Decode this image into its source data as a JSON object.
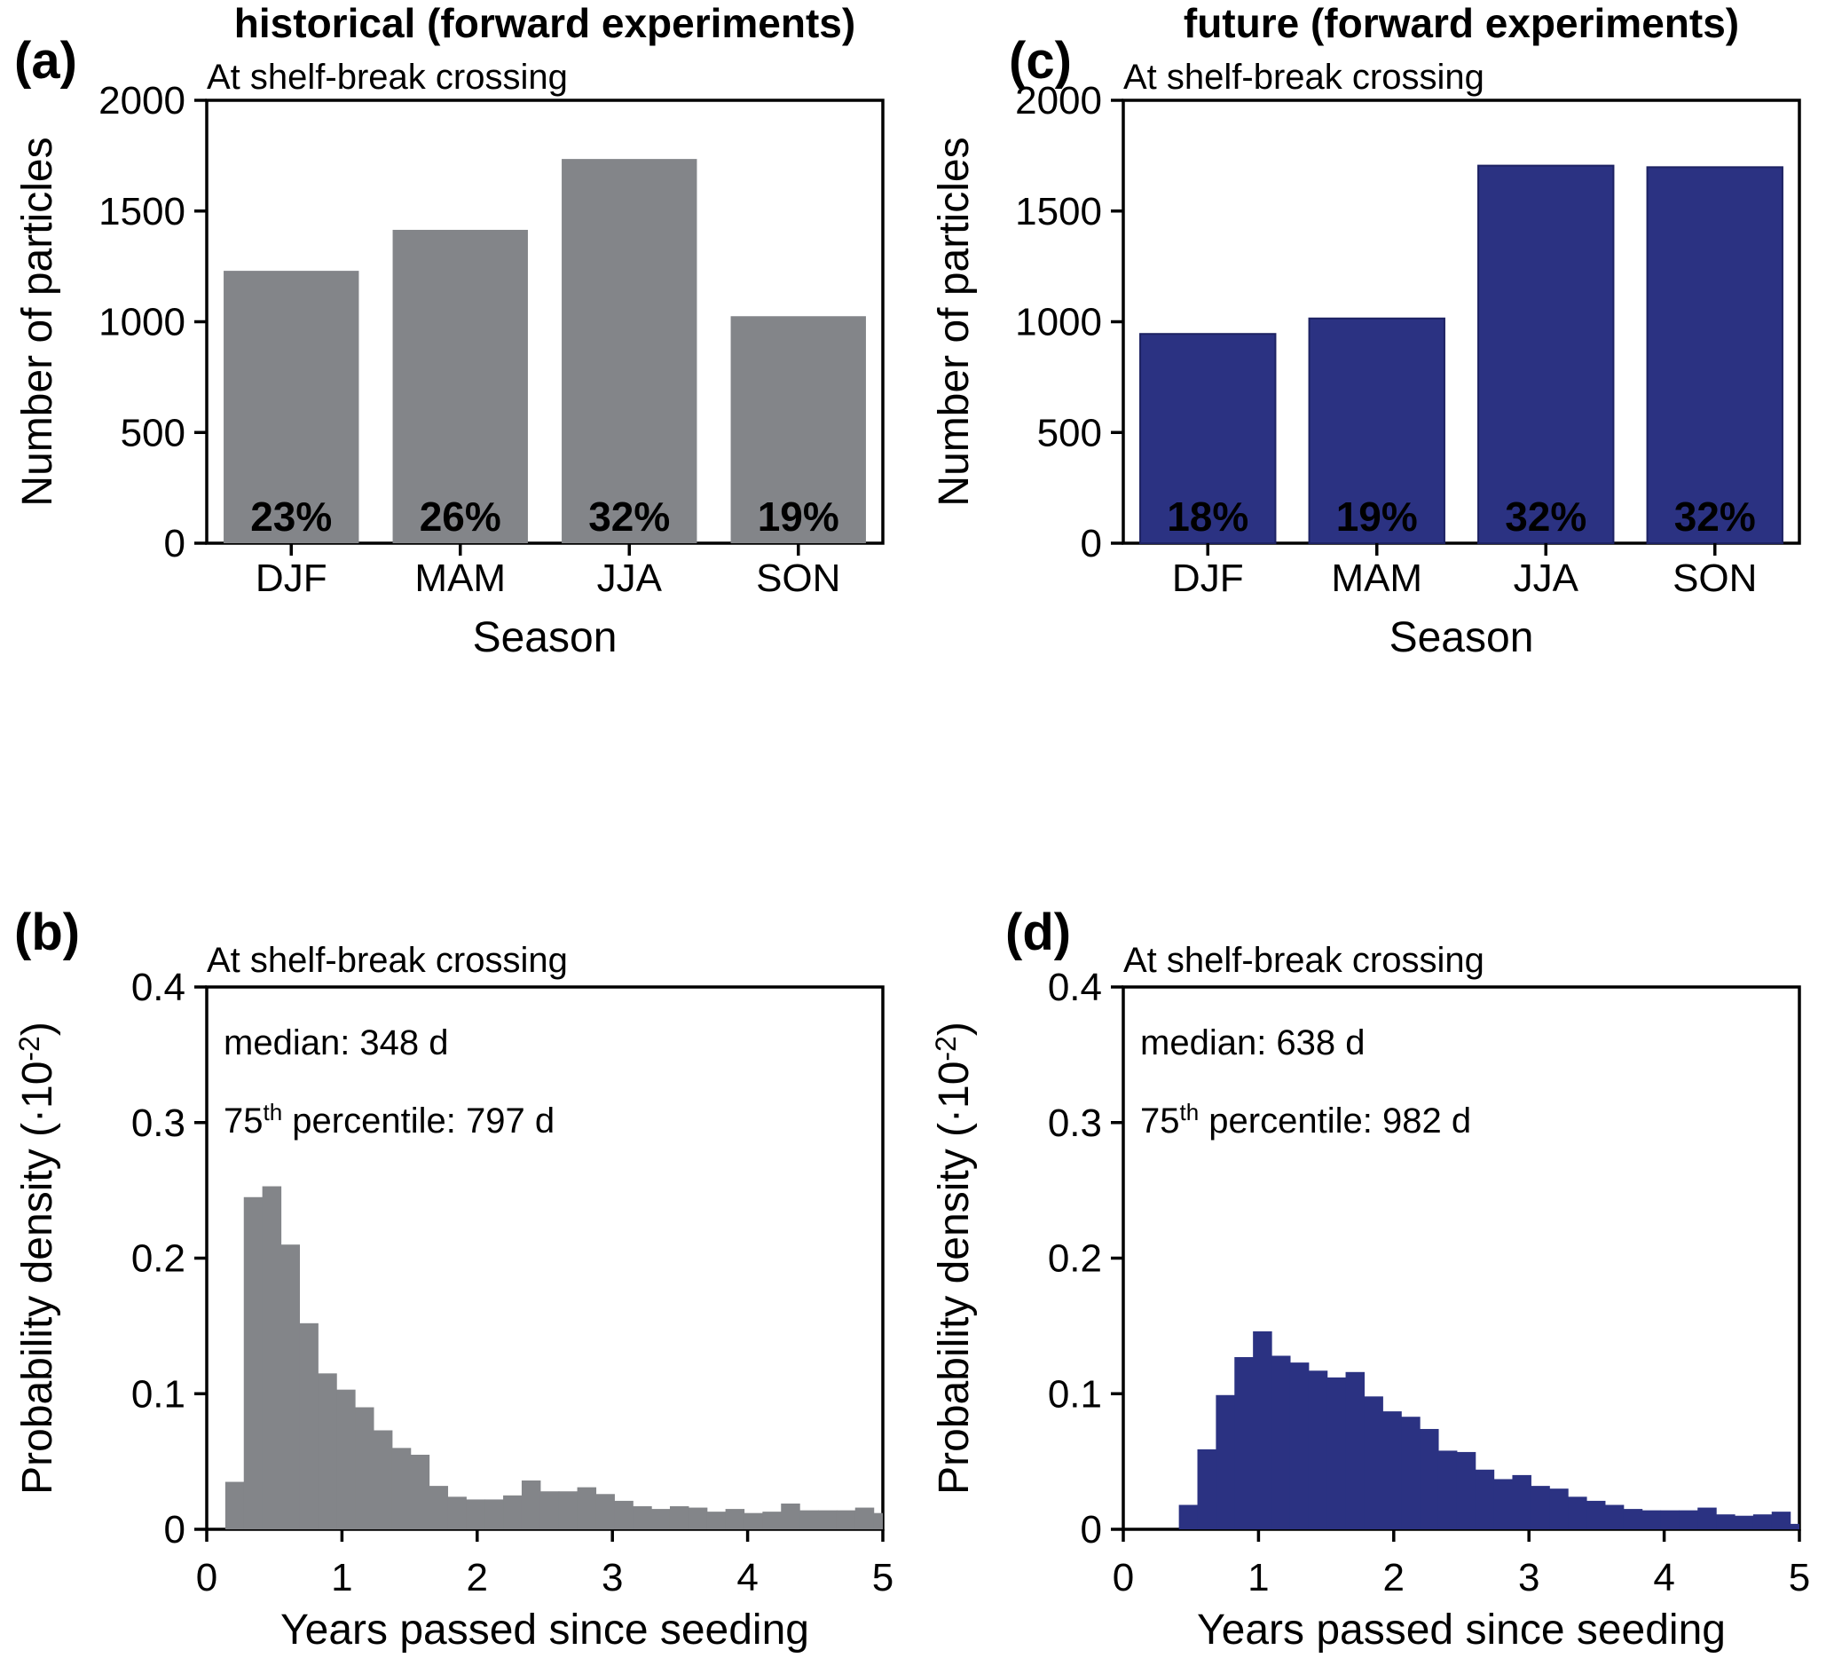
{
  "figure": {
    "column_titles": [
      "historical (forward experiments)",
      "future (forward experiments)"
    ]
  },
  "colors": {
    "historical_fill": "#838589",
    "future_fill": "#2b3282",
    "future_edge": "#1d2263",
    "axis": "#000000",
    "bar_label_text": "#ffffff"
  },
  "chart_data": [
    {
      "id": "a",
      "type": "bar",
      "panel_tag": "(a)",
      "column_title": "historical (forward experiments)",
      "subtitle": "At shelf-break crossing",
      "categories": [
        "DJF",
        "MAM",
        "JJA",
        "SON"
      ],
      "values": [
        1230,
        1415,
        1735,
        1025
      ],
      "bar_labels": [
        "23%",
        "26%",
        "32%",
        "19%"
      ],
      "xlabel": "Season",
      "ylabel_parts": [
        {
          "t": "Number of particles"
        }
      ],
      "ylim": [
        0,
        2000
      ],
      "yticks": [
        {
          "v": 0,
          "label": "0"
        },
        {
          "v": 500,
          "label": "500"
        },
        {
          "v": 1000,
          "label": "1000"
        },
        {
          "v": 1500,
          "label": "1500"
        },
        {
          "v": 2000,
          "label": "2000"
        }
      ],
      "bar_color": "#838589",
      "bar_stroke": "none",
      "legend": "none",
      "grid": false
    },
    {
      "id": "c",
      "type": "bar",
      "panel_tag": "(c)",
      "column_title": "future (forward experiments)",
      "subtitle": "At shelf-break crossing",
      "categories": [
        "DJF",
        "MAM",
        "JJA",
        "SON"
      ],
      "values": [
        945,
        1015,
        1705,
        1698
      ],
      "bar_labels": [
        "18%",
        "19%",
        "32%",
        "32%"
      ],
      "xlabel": "Season",
      "ylabel_parts": [
        {
          "t": "Number of particles"
        }
      ],
      "ylim": [
        0,
        2000
      ],
      "yticks": [
        {
          "v": 0,
          "label": "0"
        },
        {
          "v": 500,
          "label": "500"
        },
        {
          "v": 1000,
          "label": "1000"
        },
        {
          "v": 1500,
          "label": "1500"
        },
        {
          "v": 2000,
          "label": "2000"
        }
      ],
      "bar_color": "#2b3282",
      "bar_stroke": "#1d2263",
      "legend": "none",
      "grid": false
    },
    {
      "id": "b",
      "type": "histogram",
      "panel_tag": "(b)",
      "subtitle": "At shelf-break crossing",
      "annotations": [
        [
          {
            "t": "median: 348 d"
          }
        ],
        [
          {
            "t": "75"
          },
          {
            "t": "th",
            "sup": true
          },
          {
            "t": " percentile: 797 d"
          }
        ]
      ],
      "xlabel": "Years passed since seeding",
      "ylabel_parts": [
        {
          "t": "Probability density (·10"
        },
        {
          "t": "-2",
          "sup": true
        },
        {
          "t": ")"
        }
      ],
      "xlim": [
        0,
        5
      ],
      "ylim": [
        0,
        0.4
      ],
      "xticks": [
        {
          "v": 0,
          "label": "0"
        },
        {
          "v": 1,
          "label": "1"
        },
        {
          "v": 2,
          "label": "2"
        },
        {
          "v": 3,
          "label": "3"
        },
        {
          "v": 4,
          "label": "4"
        },
        {
          "v": 5,
          "label": "5"
        }
      ],
      "yticks": [
        {
          "v": 0,
          "label": "0"
        },
        {
          "v": 0.1,
          "label": "0.1"
        },
        {
          "v": 0.2,
          "label": "0.2"
        },
        {
          "v": 0.3,
          "label": "0.3"
        },
        {
          "v": 0.4,
          "label": "0.4"
        }
      ],
      "bin_start": 0.137,
      "bin_width": 0.137,
      "heights": [
        0.035,
        0.245,
        0.253,
        0.21,
        0.152,
        0.115,
        0.103,
        0.09,
        0.073,
        0.06,
        0.055,
        0.032,
        0.024,
        0.022,
        0.022,
        0.025,
        0.036,
        0.028,
        0.028,
        0.031,
        0.026,
        0.021,
        0.017,
        0.015,
        0.017,
        0.016,
        0.013,
        0.015,
        0.012,
        0.013,
        0.019,
        0.014,
        0.014,
        0.014,
        0.016,
        0.012
      ],
      "bar_color": "#838589",
      "bar_stroke": "none",
      "grid": false
    },
    {
      "id": "d",
      "type": "histogram",
      "panel_tag": "(d)",
      "subtitle": "At shelf-break crossing",
      "annotations": [
        [
          {
            "t": "median: 638 d"
          }
        ],
        [
          {
            "t": "75"
          },
          {
            "t": "th",
            "sup": true
          },
          {
            "t": " percentile: 982 d"
          }
        ]
      ],
      "xlabel": "Years passed since seeding",
      "ylabel_parts": [
        {
          "t": "Probability density (·10"
        },
        {
          "t": "-2",
          "sup": true
        },
        {
          "t": ")"
        }
      ],
      "xlim": [
        0,
        5
      ],
      "ylim": [
        0,
        0.4
      ],
      "xticks": [
        {
          "v": 0,
          "label": "0"
        },
        {
          "v": 1,
          "label": "1"
        },
        {
          "v": 2,
          "label": "2"
        },
        {
          "v": 3,
          "label": "3"
        },
        {
          "v": 4,
          "label": "4"
        },
        {
          "v": 5,
          "label": "5"
        }
      ],
      "yticks": [
        {
          "v": 0,
          "label": "0"
        },
        {
          "v": 0.1,
          "label": "0.1"
        },
        {
          "v": 0.2,
          "label": "0.2"
        },
        {
          "v": 0.3,
          "label": "0.3"
        },
        {
          "v": 0.4,
          "label": "0.4"
        }
      ],
      "bin_start": 0.137,
      "bin_width": 0.137,
      "heights": [
        0.0,
        0.0,
        0.018,
        0.059,
        0.099,
        0.127,
        0.146,
        0.128,
        0.123,
        0.117,
        0.112,
        0.116,
        0.098,
        0.087,
        0.083,
        0.074,
        0.058,
        0.057,
        0.044,
        0.037,
        0.04,
        0.032,
        0.03,
        0.024,
        0.021,
        0.018,
        0.015,
        0.014,
        0.014,
        0.014,
        0.016,
        0.011,
        0.01,
        0.011,
        0.013,
        0.004
      ],
      "bar_color": "#2b3282",
      "bar_stroke": "#1d2263",
      "grid": false
    }
  ]
}
